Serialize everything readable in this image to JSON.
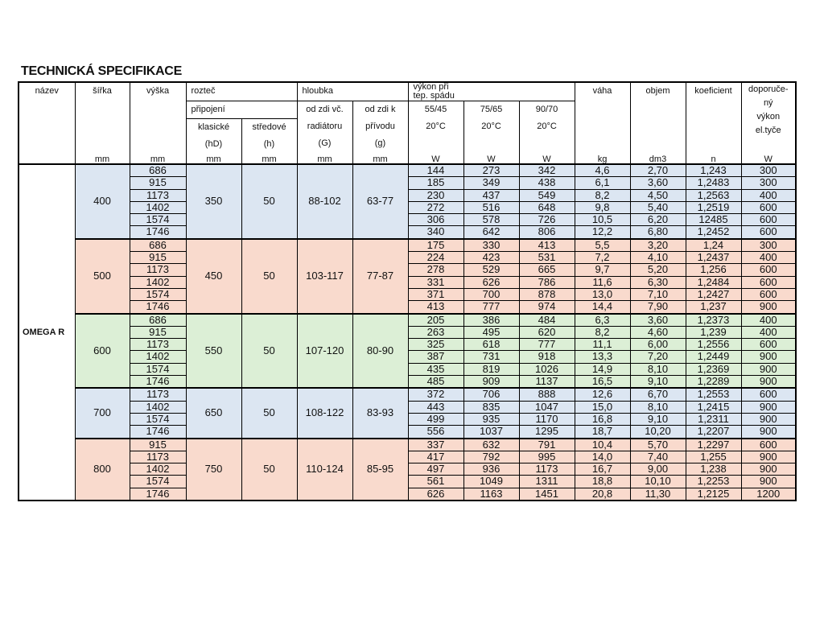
{
  "title": "TECHNICKÁ SPECIFIKACE",
  "header": {
    "nazev": "název",
    "sirka": "šířka",
    "sirka_unit": "mm",
    "vyska": "výška",
    "vyska_unit": "mm",
    "roztec": "rozteč",
    "pripojeni": "připojení",
    "klasicke": [
      "klasické",
      "(hD)"
    ],
    "klasicke_unit": "mm",
    "stredove": [
      "středové",
      "(h)"
    ],
    "stredove_unit": "mm",
    "hloubka": "hloubka",
    "od_zdi_rad": [
      "od zdi  vč.",
      "radiátoru",
      "(G)"
    ],
    "od_zdi_rad_unit": "mm",
    "od_zdi_prv": [
      "od zdi  k",
      "přívodu",
      "(g)"
    ],
    "od_zdi_prv_unit": "mm",
    "vykon": [
      "výkon při",
      "tep.  spádu"
    ],
    "t1": [
      "55/45",
      "20°C"
    ],
    "t1_unit": "W",
    "t2": [
      "75/65",
      "20°C"
    ],
    "t2_unit": "W",
    "t3": [
      "90/70",
      "20°C"
    ],
    "t3_unit": "W",
    "vaha": "váha",
    "vaha_unit": "kg",
    "objem": "objem",
    "objem_unit": "dm3",
    "koeficient": "koeficient",
    "koeficient_unit": "n",
    "doporuceny": [
      "doporuče-",
      "ný",
      "výkon",
      "el.tyče"
    ],
    "doporuceny_unit": "W"
  },
  "product": "OMEGA R",
  "groups": [
    {
      "width": "400",
      "klasicke": "350",
      "stredove": "50",
      "od_zdi_rad": "88-102",
      "od_zdi_prv": "63-77",
      "color": "#dce6f2",
      "rows": [
        [
          "686",
          "144",
          "273",
          "342",
          "4,6",
          "2,70",
          "1,243",
          "300"
        ],
        [
          "915",
          "185",
          "349",
          "438",
          "6,1",
          "3,60",
          "1,2483",
          "300"
        ],
        [
          "1173",
          "230",
          "437",
          "549",
          "8,2",
          "4,50",
          "1,2563",
          "400"
        ],
        [
          "1402",
          "272",
          "516",
          "648",
          "9,8",
          "5,40",
          "1,2519",
          "600"
        ],
        [
          "1574",
          "306",
          "578",
          "726",
          "10,5",
          "6,20",
          "12485",
          "600"
        ],
        [
          "1746",
          "340",
          "642",
          "806",
          "12,2",
          "6,80",
          "1,2452",
          "600"
        ]
      ]
    },
    {
      "width": "500",
      "klasicke": "450",
      "stredove": "50",
      "od_zdi_rad": "103-117",
      "od_zdi_prv": "77-87",
      "color": "#f9dacd",
      "rows": [
        [
          "686",
          "175",
          "330",
          "413",
          "5,5",
          "3,20",
          "1,24",
          "300"
        ],
        [
          "915",
          "224",
          "423",
          "531",
          "7,2",
          "4,10",
          "1,2437",
          "400"
        ],
        [
          "1173",
          "278",
          "529",
          "665",
          "9,7",
          "5,20",
          "1,256",
          "600"
        ],
        [
          "1402",
          "331",
          "626",
          "786",
          "11,6",
          "6,30",
          "1,2484",
          "600"
        ],
        [
          "1574",
          "371",
          "700",
          "878",
          "13,0",
          "7,10",
          "1,2427",
          "600"
        ],
        [
          "1746",
          "413",
          "777",
          "974",
          "14,4",
          "7,90",
          "1,237",
          "900"
        ]
      ]
    },
    {
      "width": "600",
      "klasicke": "550",
      "stredove": "50",
      "od_zdi_rad": "107-120",
      "od_zdi_prv": "80-90",
      "color": "#dcefd6",
      "rows": [
        [
          "686",
          "205",
          "386",
          "484",
          "6,3",
          "3,60",
          "1,2373",
          "400"
        ],
        [
          "915",
          "263",
          "495",
          "620",
          "8,2",
          "4,60",
          "1,239",
          "400"
        ],
        [
          "1173",
          "325",
          "618",
          "777",
          "11,1",
          "6,00",
          "1,2556",
          "600"
        ],
        [
          "1402",
          "387",
          "731",
          "918",
          "13,3",
          "7,20",
          "1,2449",
          "900"
        ],
        [
          "1574",
          "435",
          "819",
          "1026",
          "14,9",
          "8,10",
          "1,2369",
          "900"
        ],
        [
          "1746",
          "485",
          "909",
          "1137",
          "16,5",
          "9,10",
          "1,2289",
          "900"
        ]
      ]
    },
    {
      "width": "700",
      "klasicke": "650",
      "stredove": "50",
      "od_zdi_rad": "108-122",
      "od_zdi_prv": "83-93",
      "color": "#dce6f2",
      "rows": [
        [
          "1173",
          "372",
          "706",
          "888",
          "12,6",
          "6,70",
          "1,2553",
          "600"
        ],
        [
          "1402",
          "443",
          "835",
          "1047",
          "15,0",
          "8,10",
          "1,2415",
          "900"
        ],
        [
          "1574",
          "499",
          "935",
          "1170",
          "16,8",
          "9,10",
          "1,2311",
          "900"
        ],
        [
          "1746",
          "556",
          "1037",
          "1295",
          "18,7",
          "10,20",
          "1,2207",
          "900"
        ]
      ]
    },
    {
      "width": "800",
      "klasicke": "750",
      "stredove": "50",
      "od_zdi_rad": "110-124",
      "od_zdi_prv": "85-95",
      "color": "#f9dacd",
      "rows": [
        [
          "915",
          "337",
          "632",
          "791",
          "10,4",
          "5,70",
          "1,2297",
          "600"
        ],
        [
          "1173",
          "417",
          "792",
          "995",
          "14,0",
          "7,40",
          "1,255",
          "900"
        ],
        [
          "1402",
          "497",
          "936",
          "1173",
          "16,7",
          "9,00",
          "1,238",
          "900"
        ],
        [
          "1574",
          "561",
          "1049",
          "1311",
          "18,8",
          "10,10",
          "1,2253",
          "900"
        ],
        [
          "1746",
          "626",
          "1163",
          "1451",
          "20,8",
          "11,30",
          "1,2125",
          "1200"
        ]
      ]
    }
  ]
}
